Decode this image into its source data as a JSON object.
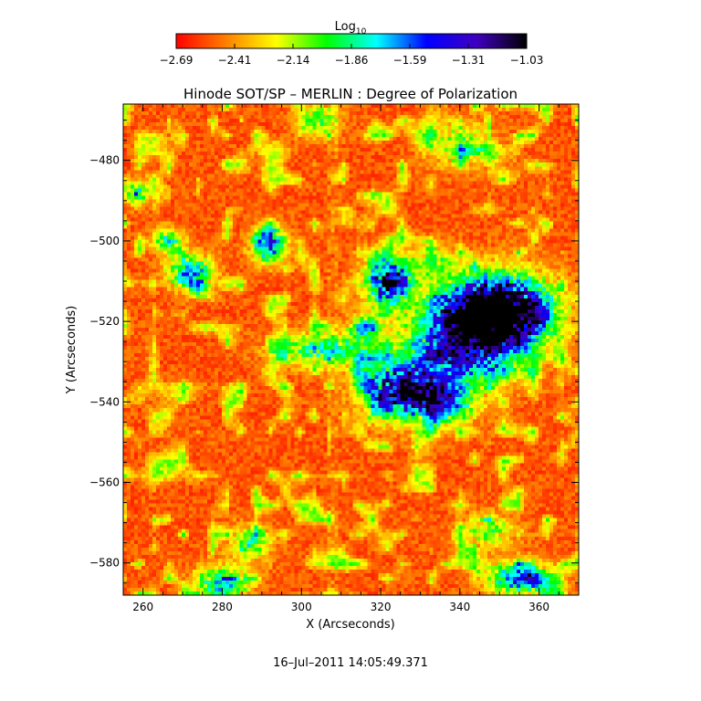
{
  "chart_data": {
    "type": "heatmap",
    "title": "Hinode SOT/SP – MERLIN : Degree of Polarization",
    "xlabel": "X (Arcseconds)",
    "ylabel": "Y (Arcseconds)",
    "xlim": [
      255,
      370
    ],
    "ylim": [
      -588,
      -466
    ],
    "x_ticks": [
      260,
      280,
      300,
      320,
      340,
      360
    ],
    "x_tick_labels": [
      "260",
      "280",
      "300",
      "320",
      "340",
      "360"
    ],
    "y_ticks": [
      -480,
      -500,
      -520,
      -540,
      -560,
      -580
    ],
    "y_tick_labels": [
      "−480",
      "−500",
      "−520",
      "−540",
      "−560",
      "−580"
    ],
    "colorbar": {
      "label_base": "Log",
      "label_sub": "10",
      "range": [
        -2.69,
        -1.03
      ],
      "tick_labels": [
        "−2.69",
        "−2.41",
        "−2.14",
        "−1.86",
        "−1.59",
        "−1.31",
        "−1.03"
      ],
      "colors": [
        "#ff0000",
        "#ff8000",
        "#ffff00",
        "#00ff00",
        "#00ffff",
        "#0000ff",
        "#4000c0",
        "#000000"
      ]
    },
    "features": [
      {
        "x": 350,
        "y": -517,
        "sx": 9,
        "sy": 6,
        "amp": 1.1
      },
      {
        "x": 342,
        "y": -524,
        "sx": 10,
        "sy": 7,
        "amp": 0.8
      },
      {
        "x": 326,
        "y": -537,
        "sx": 7,
        "sy": 5,
        "amp": 0.9
      },
      {
        "x": 322,
        "y": -510,
        "sx": 4,
        "sy": 4,
        "amp": 0.9
      },
      {
        "x": 292,
        "y": -501,
        "sx": 3,
        "sy": 3,
        "amp": 0.7
      },
      {
        "x": 272,
        "y": -508,
        "sx": 4,
        "sy": 3,
        "amp": 0.6
      },
      {
        "x": 266,
        "y": -500,
        "sx": 3,
        "sy": 2,
        "amp": 0.45
      },
      {
        "x": 258,
        "y": -488,
        "sx": 2,
        "sy": 2,
        "amp": 0.5
      },
      {
        "x": 305,
        "y": -527,
        "sx": 8,
        "sy": 3,
        "amp": 0.45
      },
      {
        "x": 337,
        "y": -540,
        "sx": 5,
        "sy": 4,
        "amp": 0.5
      },
      {
        "x": 355,
        "y": -584,
        "sx": 6,
        "sy": 3,
        "amp": 0.6
      },
      {
        "x": 280,
        "y": -585,
        "sx": 5,
        "sy": 3,
        "amp": 0.5
      },
      {
        "x": 304,
        "y": -470,
        "sx": 4,
        "sy": 3,
        "amp": 0.35
      },
      {
        "x": 340,
        "y": -476,
        "sx": 6,
        "sy": 4,
        "amp": 0.3
      },
      {
        "x": 287,
        "y": -575,
        "sx": 4,
        "sy": 3,
        "amp": 0.35
      },
      {
        "x": 347,
        "y": -572,
        "sx": 5,
        "sy": 3,
        "amp": 0.3
      },
      {
        "x": 333,
        "y": -505,
        "sx": 4,
        "sy": 3,
        "amp": 0.3
      },
      {
        "x": 316,
        "y": -522,
        "sx": 3,
        "sy": 3,
        "amp": 0.35
      }
    ]
  },
  "footer": {
    "timestamp": "16–Jul–2011 14:05:49.371"
  }
}
